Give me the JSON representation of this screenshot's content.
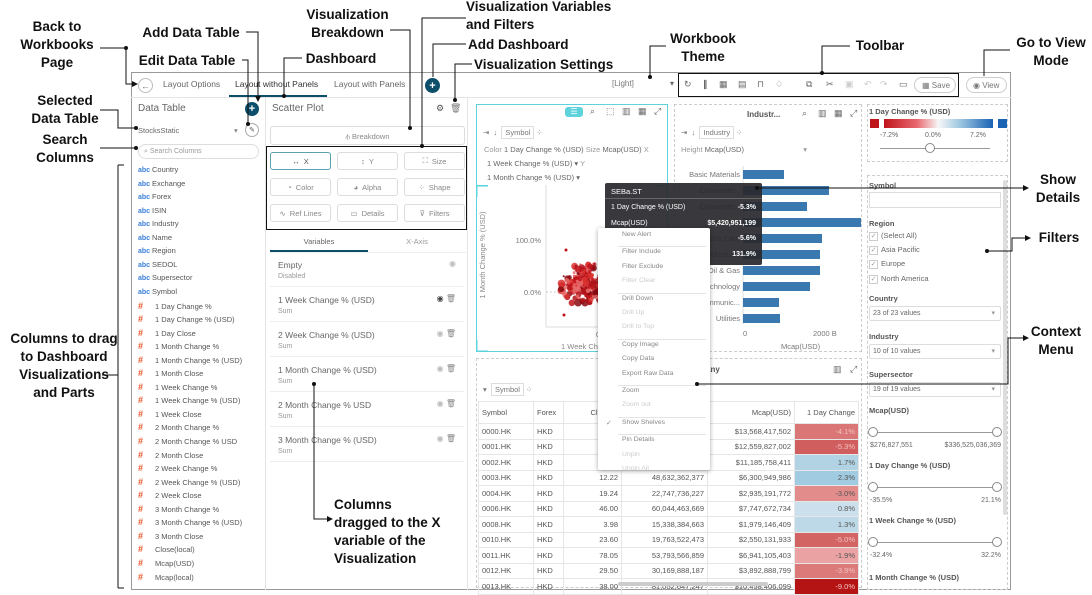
{
  "annotations": {
    "back": "Back to Workbooks Page",
    "selected_table": "Selected Data Table",
    "search": "Search Columns",
    "columns": "Columns to drag to Dashboard Visualizations and Parts",
    "add_table": "Add Data Table",
    "edit_table": "Edit Data Table",
    "dashboard": "Dashboard",
    "breakdown": "Visualization Breakdown",
    "variables": "Visualization Variables and Filters",
    "add_dashboard": "Add Dashboard",
    "viz_settings": "Visualization Settings",
    "theme": "Workbook Theme",
    "toolbar": "Toolbar",
    "view_mode": "Go to View Mode",
    "show_details": "Show Details",
    "filters": "Filters",
    "context_menu": "Context Menu",
    "dragged": "Columns dragged to the X variable of the Visualization"
  },
  "header": {
    "tabs": [
      "Layout Options",
      "Layout without Panels",
      "Layout with Panels"
    ],
    "active_tab": 1,
    "theme": "[Light]",
    "save": "Save",
    "view": "View"
  },
  "data_panel": {
    "title": "Data Table",
    "table": "StocksStatic",
    "search_placeholder": "Search Columns",
    "columns": [
      {
        "type": "abc",
        "name": "Country"
      },
      {
        "type": "abc",
        "name": "Exchange"
      },
      {
        "type": "abc",
        "name": "Forex"
      },
      {
        "type": "abc",
        "name": "ISIN"
      },
      {
        "type": "abc",
        "name": "Industry"
      },
      {
        "type": "abc",
        "name": "Name"
      },
      {
        "type": "abc",
        "name": "Region"
      },
      {
        "type": "abc",
        "name": "SEDOL"
      },
      {
        "type": "abc",
        "name": "Supersector"
      },
      {
        "type": "abc",
        "name": "Symbol"
      },
      {
        "type": "#",
        "name": "1 Day Change %"
      },
      {
        "type": "#",
        "name": "1 Day Change % (USD)"
      },
      {
        "type": "#",
        "name": "1 Day Close"
      },
      {
        "type": "#",
        "name": "1 Month Change %"
      },
      {
        "type": "#",
        "name": "1 Month Change % (USD)"
      },
      {
        "type": "#",
        "name": "1 Month Close"
      },
      {
        "type": "#",
        "name": "1 Week Change %"
      },
      {
        "type": "#",
        "name": "1 Week Change % (USD)"
      },
      {
        "type": "#",
        "name": "1 Week Close"
      },
      {
        "type": "#",
        "name": "2 Month Change %"
      },
      {
        "type": "#",
        "name": "2 Month Change % USD"
      },
      {
        "type": "#",
        "name": "2 Month Close"
      },
      {
        "type": "#",
        "name": "2 Week Change %"
      },
      {
        "type": "#",
        "name": "2 Week Change % (USD)"
      },
      {
        "type": "#",
        "name": "2 Week Close"
      },
      {
        "type": "#",
        "name": "3 Month Change %"
      },
      {
        "type": "#",
        "name": "3 Month Change % (USD)"
      },
      {
        "type": "#",
        "name": "3 Month Close"
      },
      {
        "type": "#",
        "name": "Close(local)"
      },
      {
        "type": "#",
        "name": "Mcap(USD)"
      },
      {
        "type": "#",
        "name": "Mcap(local)"
      }
    ]
  },
  "viz_panel": {
    "title": "Scatter Plot",
    "breakdown": "Breakdown",
    "buttons": [
      "X",
      "Y",
      "Size",
      "Color",
      "Alpha",
      "Shape",
      "Ref Lines",
      "Details",
      "Filters"
    ],
    "icons": [
      "↔",
      "↕",
      "⛶",
      "◔",
      "◕",
      "⁘",
      "∿",
      "▭",
      "⊽"
    ],
    "tabs": [
      "Variables",
      "X-Axis"
    ],
    "variables": [
      {
        "name": "Empty",
        "sub": "Disabled"
      },
      {
        "name": "1 Week Change % (USD)",
        "sub": "Sum"
      },
      {
        "name": "2 Week Change % (USD)",
        "sub": "Sum"
      },
      {
        "name": "1 Month Change % (USD)",
        "sub": "Sum"
      },
      {
        "name": "2 Month Change % USD",
        "sub": "Sum"
      },
      {
        "name": "3 Month Change % (USD)",
        "sub": "Sum"
      }
    ]
  },
  "scatter": {
    "shelf": "Symbol",
    "color_label": "Color",
    "color": "1 Day Change % (USD)",
    "size_label": "Size",
    "size": "Mcap(USD)",
    "x_label": "X",
    "x": "1 Week Change % (USD)",
    "y_label": "Y",
    "y": "1 Month Change % (USD)",
    "y_axis": "1 Month Change % (USD)",
    "x_axis": "1 Week Ch",
    "yticks": [
      "100.0%",
      "0.0%"
    ],
    "xtick": "0"
  },
  "bar": {
    "title": "Industr...",
    "shelf": "Industry",
    "height_label": "Height",
    "height": "Mcap(USD)",
    "x_axis": "Mcap(USD)",
    "xticks": [
      "0",
      "2000 B"
    ],
    "categories": [
      "Basic Materials",
      "Consumer...",
      "Consumer...",
      "Financials",
      "Health Care",
      "Industrials",
      "Oil & Gas",
      "Technology",
      "Telecommunic...",
      "Utilities"
    ],
    "values": [
      976,
      2048,
      1524,
      2810,
      1881,
      1833,
      1833,
      1595,
      857,
      881
    ]
  },
  "tooltip": {
    "title": "SEBa.ST",
    "rows": [
      [
        "1 Day Change % (USD)",
        "-5.3%"
      ],
      [
        "Mcap(USD)",
        "$5,420,951,199"
      ],
      [
        "",
        "-5.6%"
      ],
      [
        "",
        "131.9%"
      ]
    ]
  },
  "context_menu": [
    {
      "label": "New Alert"
    },
    {
      "sep": true
    },
    {
      "label": "Filter Include"
    },
    {
      "label": "Filter Exclude"
    },
    {
      "label": "Filter Clear",
      "disabled": true
    },
    {
      "sep": true
    },
    {
      "label": "Drill Down"
    },
    {
      "label": "Drill Up",
      "disabled": true
    },
    {
      "label": "Drill to Top",
      "disabled": true
    },
    {
      "sep": true
    },
    {
      "label": "Copy Image"
    },
    {
      "label": "Copy Data"
    },
    {
      "label": "Export Raw Data"
    },
    {
      "sep": true
    },
    {
      "label": "Zoom"
    },
    {
      "label": "Zoom out",
      "disabled": true
    },
    {
      "sep": true
    },
    {
      "label": "Show Shelves",
      "checked": true
    },
    {
      "sep": true
    },
    {
      "label": "Pin Details"
    },
    {
      "label": "Unpin",
      "disabled": true
    },
    {
      "label": "Unpin All",
      "disabled": true
    }
  ],
  "table": {
    "title_partial": "any",
    "shelf": "Symbol",
    "headers": [
      "Symbol",
      "Forex",
      "Close(lo",
      "",
      "Mcap(USD)",
      "1 Day Change"
    ],
    "rows": [
      [
        "0000.HK",
        "HKD",
        "",
        "",
        "$13,568,417,502",
        "-4.1%"
      ],
      [
        "0001.HK",
        "HKD",
        "6",
        "",
        "$12,559,827,002",
        "-5.3%"
      ],
      [
        "0002.HK",
        "HKD",
        "5",
        "",
        "$11,185,758,411",
        "1.7%"
      ],
      [
        "0003.HK",
        "HKD",
        "12.22",
        "48,632,362,377",
        "$6,300,949,986",
        "2.3%"
      ],
      [
        "0004.HK",
        "HKD",
        "19.24",
        "22,747,736,227",
        "$2,935,191,772",
        "-3.0%"
      ],
      [
        "0006.HK",
        "HKD",
        "46.00",
        "60,044,463,669",
        "$7,747,672,734",
        "0.8%"
      ],
      [
        "0008.HK",
        "HKD",
        "3.98",
        "15,338,384,663",
        "$1,979,146,409",
        "1.3%"
      ],
      [
        "0010.HK",
        "HKD",
        "23.60",
        "19,763,522,473",
        "$2,550,131,933",
        "-5.0%"
      ],
      [
        "0011.HK",
        "HKD",
        "78.05",
        "53,793,566,859",
        "$6,941,105,403",
        "-1.9%"
      ],
      [
        "0012.HK",
        "HKD",
        "29.50",
        "30,169,888,187",
        "$3,892,888,799",
        "-3.9%"
      ],
      [
        "0013.HK",
        "HKD",
        "38.00",
        "81,052,647,247",
        "$10,458,406,099",
        "-9.0%"
      ]
    ]
  },
  "legend": {
    "title": "1 Day Change % (USD)",
    "min": "-7.2%",
    "mid": "0.0%",
    "max": "7.2%",
    "neg_color": "#c0141b",
    "pos_color": "#1a62b4"
  },
  "filters": {
    "symbol_label": "Symbol",
    "region_label": "Region",
    "regions": [
      "(Select All)",
      "Asia Pacific",
      "Europe",
      "North America"
    ],
    "country_label": "Country",
    "country": "23 of 23 values",
    "industry_label": "Industry",
    "industry": "10 of 10 values",
    "supersector_label": "Supersector",
    "supersector": "19 of 19 values",
    "ranges": [
      {
        "label": "Mcap(USD)",
        "min": "$276,827,551",
        "max": "$336,525,036,369"
      },
      {
        "label": "1 Day Change % (USD)",
        "min": "-35.5%",
        "max": "21.1%"
      },
      {
        "label": "1 Week Change % (USD)",
        "min": "-32.4%",
        "max": "32.2%"
      }
    ],
    "last_label": "1 Month Change % (USD)"
  },
  "colors": {
    "accent": "#0d4f6b",
    "selection": "#5fd3dc",
    "bar": "#3a78b0"
  }
}
